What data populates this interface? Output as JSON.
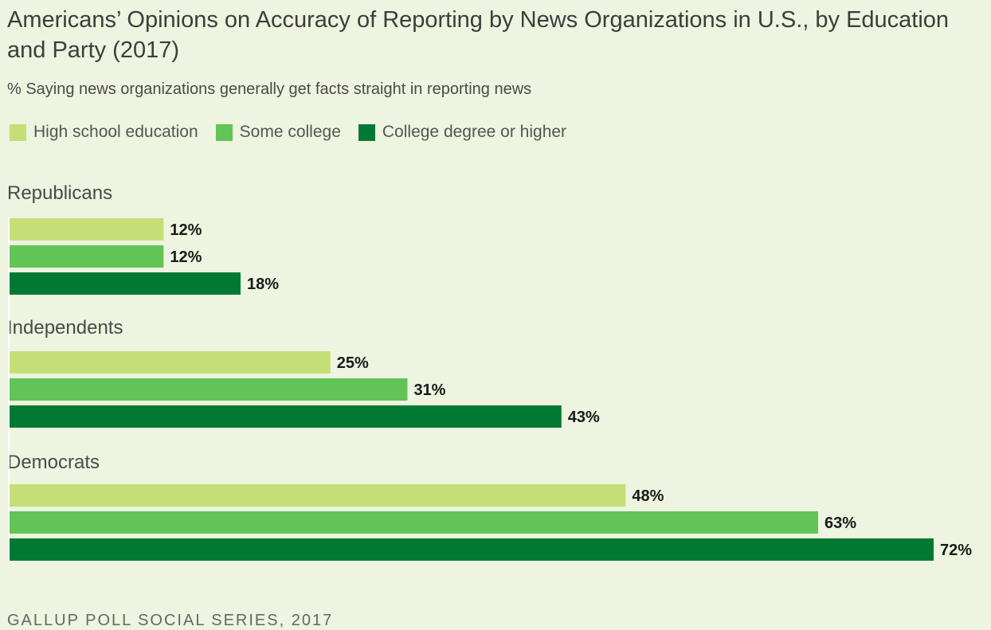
{
  "chart_data": {
    "type": "bar",
    "orientation": "horizontal",
    "title": "Americans’ Opinions on Accuracy of Reporting by News Organizations in U.S., by Education and Party (2017)",
    "subtitle": "% Saying news organizations generally get facts straight in reporting news",
    "groups": [
      "Republicans",
      "Independents",
      "Democrats"
    ],
    "series": [
      {
        "name": "High school education",
        "color": "#c5de77",
        "values": [
          12,
          25,
          48
        ]
      },
      {
        "name": "Some college",
        "color": "#62c356",
        "values": [
          12,
          31,
          63
        ]
      },
      {
        "name": "College degree or higher",
        "color": "#007a33",
        "values": [
          18,
          43,
          72
        ]
      }
    ],
    "value_suffix": "%",
    "xlim": [
      0,
      72
    ],
    "legend_position": "top-left",
    "source": "GALLUP POLL SOCIAL SERIES, 2017"
  }
}
